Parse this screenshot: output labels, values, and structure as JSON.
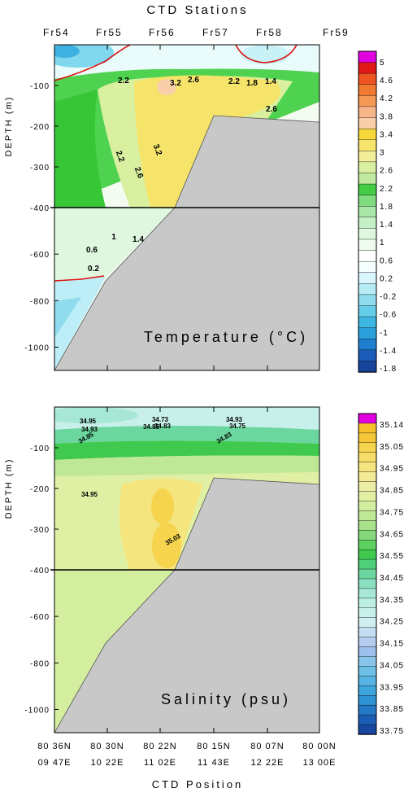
{
  "figure": {
    "top_title": "CTD Stations",
    "bottom_title": "CTD Position",
    "depth_label": "DEPTH (m)"
  },
  "stations": [
    "Fr54",
    "Fr55",
    "Fr56",
    "Fr57",
    "Fr58",
    "Fr59"
  ],
  "positions": [
    {
      "lat": "80 36N",
      "lon": "09 47E"
    },
    {
      "lat": "80 30N",
      "lon": "10 22E"
    },
    {
      "lat": "80 22N",
      "lon": "11 02E"
    },
    {
      "lat": "80 15N",
      "lon": "11 43E"
    },
    {
      "lat": "80 07N",
      "lon": "12 22E"
    },
    {
      "lat": "80 00N",
      "lon": "13 00E"
    }
  ],
  "chart_data": [
    {
      "type": "heatmap",
      "variable": "Temperature",
      "label": "Temperature (°C)",
      "x": [
        "Fr54",
        "Fr55",
        "Fr56",
        "Fr57",
        "Fr58",
        "Fr59"
      ],
      "upper_depth_ticks": [
        -100,
        -200,
        -300,
        -400
      ],
      "lower_depth_ticks": [
        -400,
        -600,
        -800,
        -1000
      ],
      "upper_depth_range": [
        0,
        -400
      ],
      "lower_depth_range": [
        -400,
        -1100
      ],
      "colorbar_labels": [
        "5",
        "4.6",
        "4.2",
        "3.8",
        "3.4",
        "3",
        "2.6",
        "2.2",
        "1.8",
        "1.4",
        "1",
        "0.6",
        "0.2",
        "-0.2",
        "-0.6",
        "-1",
        "-1.4",
        "-1.8"
      ],
      "contour_labels": [
        "2.2",
        "3.2",
        "2.6",
        "2.2",
        "1.8",
        "1.4",
        "2.6",
        "2.2",
        "2.6",
        "3.2",
        "1",
        "1.4",
        "0.6",
        "0.2"
      ]
    },
    {
      "type": "heatmap",
      "variable": "Salinity",
      "label": "Salinity (psu)",
      "x": [
        "Fr54",
        "Fr55",
        "Fr56",
        "Fr57",
        "Fr58",
        "Fr59"
      ],
      "upper_depth_ticks": [
        -100,
        -200,
        -300,
        -400
      ],
      "lower_depth_ticks": [
        -400,
        -600,
        -800,
        -1000
      ],
      "upper_depth_range": [
        0,
        -400
      ],
      "lower_depth_range": [
        -400,
        -1100
      ],
      "colorbar_labels": [
        "35.14",
        "35.05",
        "34.95",
        "34.85",
        "34.75",
        "34.65",
        "34.55",
        "34.45",
        "34.35",
        "34.25",
        "34.15",
        "34.05",
        "33.95",
        "33.85",
        "33.75"
      ],
      "contour_labels": [
        "34.95",
        "34.93",
        "34.85",
        "34.73",
        "34.85",
        "34.83",
        "34.93",
        "34.75",
        "34.83",
        "34.95",
        "35.03"
      ]
    }
  ],
  "colors": {
    "bathymetry": "#c8c8c8",
    "contour_red": "#e01010",
    "warm": "#f3d23a",
    "green": "#3fcf3f",
    "cold": "#33b5e5"
  }
}
